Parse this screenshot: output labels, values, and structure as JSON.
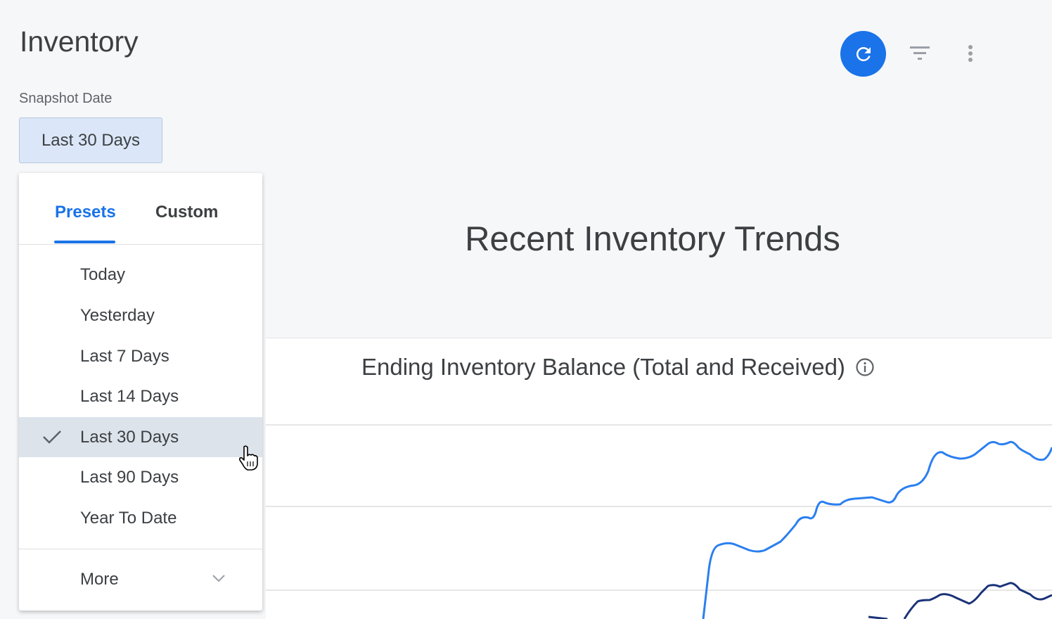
{
  "header": {
    "title": "Inventory",
    "snapshot_label": "Snapshot Date",
    "date_value": "Last 30 Days"
  },
  "toolbar": {
    "refresh_icon": "refresh-icon",
    "filter_icon": "filter-icon",
    "more_icon": "more-vert-icon",
    "accent": "#1a73e8"
  },
  "dropdown": {
    "tabs": [
      {
        "label": "Presets",
        "active": true
      },
      {
        "label": "Custom",
        "active": false
      }
    ],
    "items": [
      {
        "label": "Today"
      },
      {
        "label": "Yesterday"
      },
      {
        "label": "Last 7 Days"
      },
      {
        "label": "Last 14 Days"
      },
      {
        "label": "Last 30 Days",
        "selected": true
      },
      {
        "label": "Last 90 Days"
      },
      {
        "label": "Year To Date"
      }
    ],
    "more_label": "More"
  },
  "section": {
    "title": "Recent Inventory Trends"
  },
  "chart": {
    "title": "Ending Inventory Balance (Total and Received)",
    "info_icon": "info-icon",
    "series_colors": [
      "#2a7ff0",
      "#1a3278"
    ]
  }
}
